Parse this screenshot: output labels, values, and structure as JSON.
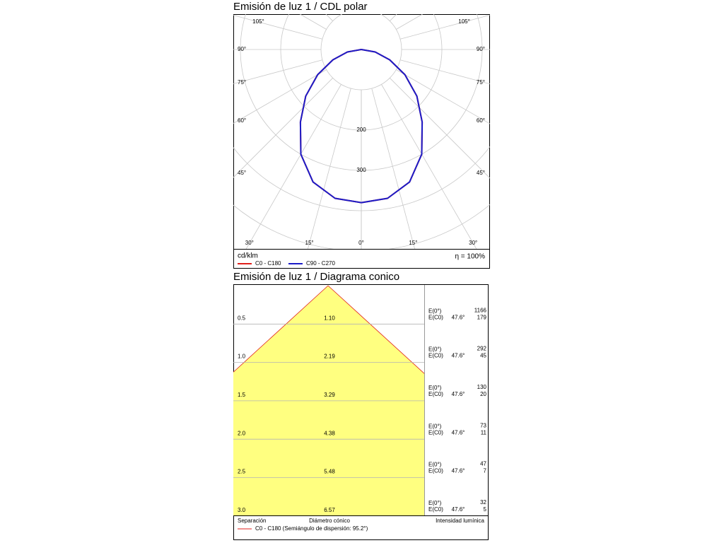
{
  "chart_data": [
    {
      "type": "polar",
      "title": "Emisión de luz 1 / CDL polar",
      "unit_label": "cd/klm",
      "efficiency_label": "η = 100%",
      "angles": [
        0,
        10,
        20,
        30,
        40,
        50,
        60,
        70,
        80,
        90
      ],
      "series": [
        {
          "name": "C0 - C180",
          "color": "#e0201c",
          "values": [
            380,
            375,
            350,
            300,
            235,
            180,
            125,
            75,
            35,
            0
          ]
        },
        {
          "name": "C90 - C270",
          "color": "#1c1cc8",
          "values": [
            380,
            375,
            350,
            300,
            235,
            180,
            125,
            75,
            35,
            0
          ]
        }
      ],
      "rlim": [
        0,
        600
      ],
      "rgrid": [
        100,
        200,
        300,
        400,
        500,
        600
      ],
      "rticks": [
        200,
        300
      ],
      "angle_grid": [
        0,
        15,
        30,
        45,
        60,
        75,
        90,
        105,
        120,
        135,
        150,
        165,
        180
      ],
      "angle_ticks": [
        {
          "value": 0,
          "label": "0°"
        },
        {
          "value": 15,
          "label": "15°"
        },
        {
          "value": 30,
          "label": "30°"
        },
        {
          "value": 45,
          "label": "45°"
        },
        {
          "value": 60,
          "label": "60°"
        },
        {
          "value": 75,
          "label": "75°"
        },
        {
          "value": 90,
          "label": "90°"
        },
        {
          "value": 105,
          "label": "105°"
        }
      ]
    },
    {
      "type": "cone",
      "title": "Emisión de luz 1 / Diagrama conico",
      "half_angle": {
        "value": 47.6,
        "label": "47.6°"
      },
      "heights": [
        0.5,
        1,
        1.5,
        2,
        2.5,
        3
      ],
      "height_labels": [
        "0.5",
        "1.0",
        "1.5",
        "2.0",
        "2.5",
        "3.0"
      ],
      "diameters": [
        1.1,
        2.19,
        3.29,
        4.38,
        5.48,
        6.57
      ],
      "diameter_labels": [
        "1.10",
        "2.19",
        "3.29",
        "4.38",
        "5.48",
        "6.57"
      ],
      "e0_label": "E(0°)",
      "ec0_label": "E(C0)",
      "e0": [
        1166,
        292,
        130,
        73,
        47,
        32
      ],
      "ec0": [
        179,
        45,
        20,
        11,
        7,
        5
      ],
      "fill_color": "#ffff80",
      "edge_color": "#e0201c",
      "x_label_left": "Separación",
      "x_label_center": "Diámetro cónico",
      "x_label_right": "Intensidad lumínica",
      "legend": "C0 - C180 (Semiángulo de dispersión: 95.2°)"
    }
  ]
}
